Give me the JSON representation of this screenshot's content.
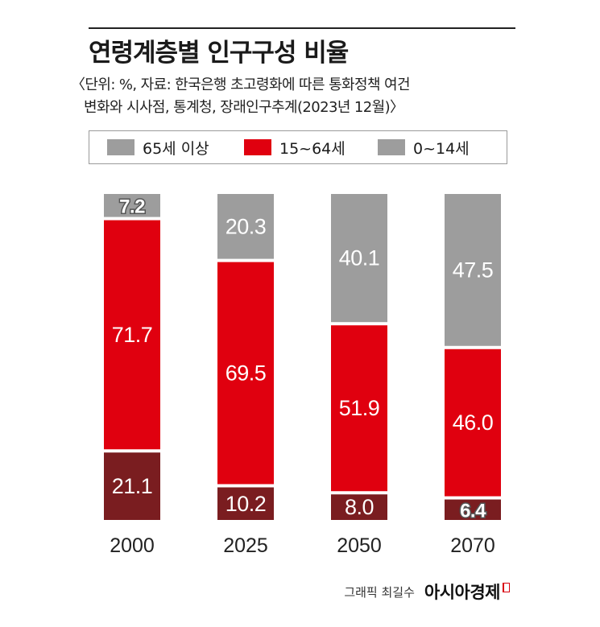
{
  "header": {
    "title": "연령계층별 인구구성 비율",
    "source_line1": "〈단위: %, 자료: 한국은행 초고령화에 따른 통화정책 여건",
    "source_line2": "변화와 시사점, 통계청, 장래인구추계(2023년 12월)〉"
  },
  "legend": {
    "items": [
      {
        "label": "65세 이상",
        "color": "#9d9d9d"
      },
      {
        "label": "15~64세",
        "color": "#e0000f"
      },
      {
        "label": "0~14세",
        "color": "#9d9d9d"
      }
    ]
  },
  "chart_data": {
    "type": "bar",
    "stacked": true,
    "categories": [
      "2000",
      "2025",
      "2050",
      "2070"
    ],
    "series": [
      {
        "name": "0~14세",
        "color": "#7a1d20",
        "values": [
          21.1,
          10.2,
          8.0,
          6.4
        ],
        "labels": [
          "21.1",
          "10.2",
          "8.0",
          "6.4"
        ]
      },
      {
        "name": "15~64세",
        "color": "#e0000f",
        "values": [
          71.7,
          69.5,
          51.9,
          46.0
        ],
        "labels": [
          "71.7",
          "69.5",
          "51.9",
          "46.0"
        ]
      },
      {
        "name": "65세 이상",
        "color": "#9d9d9d",
        "values": [
          7.2,
          20.3,
          40.1,
          47.5
        ],
        "labels": [
          "7.2",
          "20.3",
          "40.1",
          "47.5"
        ]
      }
    ],
    "ylim": [
      0,
      100
    ]
  },
  "credit": {
    "text": "그래픽 최길수",
    "brand": "아시아경제"
  }
}
